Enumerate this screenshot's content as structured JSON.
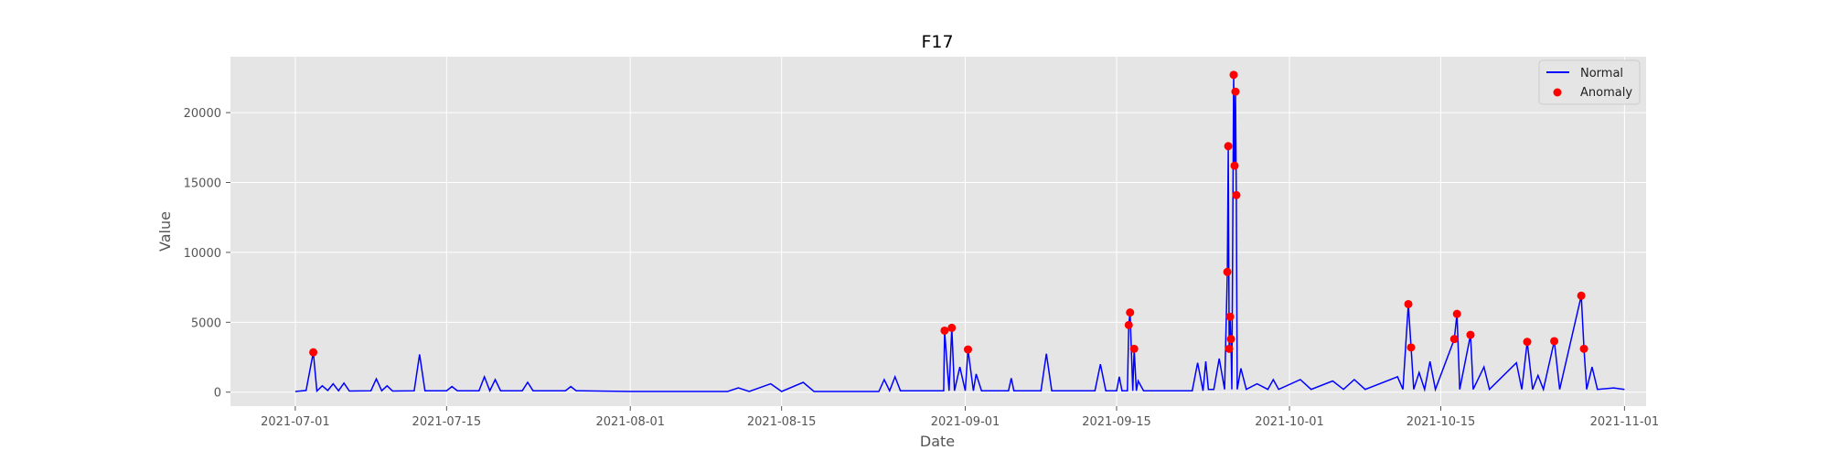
{
  "chart_data": {
    "type": "line",
    "title": "F17",
    "xlabel": "Date",
    "ylabel": "Value",
    "xlim": [
      "2021-06-25",
      "2021-11-03"
    ],
    "ylim": [
      -1000,
      24000
    ],
    "x_ticks": [
      "2021-07-01",
      "2021-07-15",
      "2021-08-01",
      "2021-08-15",
      "2021-09-01",
      "2021-09-15",
      "2021-10-01",
      "2021-10-15",
      "2021-11-01"
    ],
    "y_ticks": [
      0,
      5000,
      10000,
      15000,
      20000
    ],
    "grid": true,
    "legend": {
      "position": "top-right",
      "entries": [
        "Normal",
        "Anomaly"
      ]
    },
    "colors": {
      "normal": "#0000ff",
      "anomaly": "#ff0000",
      "plot_bg": "#e5e5e5",
      "grid": "#ffffff"
    },
    "series": [
      {
        "name": "Normal",
        "points": [
          [
            "2021-07-01",
            50
          ],
          [
            "2021-07-02",
            120
          ],
          [
            "2021-07-02 16:00",
            2850
          ],
          [
            "2021-07-03",
            80
          ],
          [
            "2021-07-03 12:00",
            450
          ],
          [
            "2021-07-04",
            120
          ],
          [
            "2021-07-04 12:00",
            600
          ],
          [
            "2021-07-05",
            100
          ],
          [
            "2021-07-05 12:00",
            650
          ],
          [
            "2021-07-06",
            80
          ],
          [
            "2021-07-08",
            100
          ],
          [
            "2021-07-08 12:00",
            950
          ],
          [
            "2021-07-09",
            100
          ],
          [
            "2021-07-09 12:00",
            450
          ],
          [
            "2021-07-10",
            80
          ],
          [
            "2021-07-12",
            100
          ],
          [
            "2021-07-12 12:00",
            2700
          ],
          [
            "2021-07-13",
            100
          ],
          [
            "2021-07-15",
            100
          ],
          [
            "2021-07-15 12:00",
            400
          ],
          [
            "2021-07-16",
            100
          ],
          [
            "2021-07-18",
            100
          ],
          [
            "2021-07-18 12:00",
            1100
          ],
          [
            "2021-07-19",
            100
          ],
          [
            "2021-07-19 12:00",
            900
          ],
          [
            "2021-07-20",
            100
          ],
          [
            "2021-07-22",
            100
          ],
          [
            "2021-07-22 12:00",
            700
          ],
          [
            "2021-07-23",
            100
          ],
          [
            "2021-07-26",
            100
          ],
          [
            "2021-07-26 12:00",
            400
          ],
          [
            "2021-07-27",
            100
          ],
          [
            "2021-08-01",
            50
          ],
          [
            "2021-08-10",
            50
          ],
          [
            "2021-08-11",
            300
          ],
          [
            "2021-08-12",
            50
          ],
          [
            "2021-08-14",
            600
          ],
          [
            "2021-08-15",
            50
          ],
          [
            "2021-08-17",
            700
          ],
          [
            "2021-08-18",
            50
          ],
          [
            "2021-08-24",
            50
          ],
          [
            "2021-08-24 12:00",
            900
          ],
          [
            "2021-08-25",
            100
          ],
          [
            "2021-08-25 12:00",
            1100
          ],
          [
            "2021-08-26",
            100
          ],
          [
            "2021-08-30",
            100
          ],
          [
            "2021-08-30 02:00",
            4400
          ],
          [
            "2021-08-30 12:00",
            100
          ],
          [
            "2021-08-30 18:00",
            4600
          ],
          [
            "2021-08-31",
            100
          ],
          [
            "2021-08-31 12:00",
            1800
          ],
          [
            "2021-09-01",
            100
          ],
          [
            "2021-09-01 06:00",
            3050
          ],
          [
            "2021-09-01 18:00",
            100
          ],
          [
            "2021-09-02",
            1300
          ],
          [
            "2021-09-02 12:00",
            100
          ],
          [
            "2021-09-05",
            100
          ],
          [
            "2021-09-05 06:00",
            1000
          ],
          [
            "2021-09-05 12:00",
            100
          ],
          [
            "2021-09-08",
            100
          ],
          [
            "2021-09-08 12:00",
            2750
          ],
          [
            "2021-09-09",
            100
          ],
          [
            "2021-09-13",
            100
          ],
          [
            "2021-09-13 12:00",
            2000
          ],
          [
            "2021-09-14",
            100
          ],
          [
            "2021-09-15",
            100
          ],
          [
            "2021-09-15 06:00",
            1100
          ],
          [
            "2021-09-15 12:00",
            100
          ],
          [
            "2021-09-16",
            100
          ],
          [
            "2021-09-16 03:00",
            4800
          ],
          [
            "2021-09-16 06:00",
            5700
          ],
          [
            "2021-09-16 12:00",
            100
          ],
          [
            "2021-09-16 15:00",
            3100
          ],
          [
            "2021-09-16 20:00",
            100
          ],
          [
            "2021-09-17",
            800
          ],
          [
            "2021-09-17 12:00",
            100
          ],
          [
            "2021-09-22",
            100
          ],
          [
            "2021-09-22 12:00",
            2100
          ],
          [
            "2021-09-23",
            100
          ],
          [
            "2021-09-23 06:00",
            2200
          ],
          [
            "2021-09-23 12:00",
            200
          ],
          [
            "2021-09-24",
            200
          ],
          [
            "2021-09-24 12:00",
            2400
          ],
          [
            "2021-09-25",
            200
          ],
          [
            "2021-09-25 06:00",
            8600
          ],
          [
            "2021-09-25 08:00",
            17600
          ],
          [
            "2021-09-25 10:00",
            3100
          ],
          [
            "2021-09-25 12:00",
            5400
          ],
          [
            "2021-09-25 14:00",
            3800
          ],
          [
            "2021-09-25 16:00",
            200
          ],
          [
            "2021-09-25 20:00",
            22700
          ],
          [
            "2021-09-25 22:00",
            16200
          ],
          [
            "2021-09-26",
            21500
          ],
          [
            "2021-09-26 02:00",
            14100
          ],
          [
            "2021-09-26 04:00",
            200
          ],
          [
            "2021-09-26 12:00",
            1700
          ],
          [
            "2021-09-27",
            200
          ],
          [
            "2021-09-28",
            600
          ],
          [
            "2021-09-29",
            200
          ],
          [
            "2021-09-29 12:00",
            900
          ],
          [
            "2021-09-30",
            200
          ],
          [
            "2021-10-02",
            900
          ],
          [
            "2021-10-03",
            200
          ],
          [
            "2021-10-05",
            800
          ],
          [
            "2021-10-06",
            200
          ],
          [
            "2021-10-07",
            900
          ],
          [
            "2021-10-08",
            200
          ],
          [
            "2021-10-11",
            1100
          ],
          [
            "2021-10-11 12:00",
            200
          ],
          [
            "2021-10-12",
            6300
          ],
          [
            "2021-10-12 06:00",
            3200
          ],
          [
            "2021-10-12 12:00",
            200
          ],
          [
            "2021-10-13",
            1400
          ],
          [
            "2021-10-13 12:00",
            200
          ],
          [
            "2021-10-14",
            2200
          ],
          [
            "2021-10-14 12:00",
            200
          ],
          [
            "2021-10-16 06:00",
            3800
          ],
          [
            "2021-10-16 12:00",
            5600
          ],
          [
            "2021-10-16 18:00",
            200
          ],
          [
            "2021-10-17 18:00",
            4100
          ],
          [
            "2021-10-18",
            200
          ],
          [
            "2021-10-19",
            1800
          ],
          [
            "2021-10-19 12:00",
            200
          ],
          [
            "2021-10-22",
            2100
          ],
          [
            "2021-10-22 12:00",
            200
          ],
          [
            "2021-10-23",
            3600
          ],
          [
            "2021-10-23 12:00",
            200
          ],
          [
            "2021-10-24",
            1200
          ],
          [
            "2021-10-24 12:00",
            200
          ],
          [
            "2021-10-25 12:00",
            3650
          ],
          [
            "2021-10-26",
            200
          ],
          [
            "2021-10-28",
            6900
          ],
          [
            "2021-10-28 06:00",
            3100
          ],
          [
            "2021-10-28 12:00",
            200
          ],
          [
            "2021-10-29",
            1800
          ],
          [
            "2021-10-29 12:00",
            200
          ],
          [
            "2021-10-31",
            300
          ],
          [
            "2021-11-01",
            200
          ]
        ]
      },
      {
        "name": "Anomaly",
        "points": [
          [
            "2021-07-02 16:00",
            2850
          ],
          [
            "2021-08-30 02:00",
            4400
          ],
          [
            "2021-08-30 18:00",
            4600
          ],
          [
            "2021-09-01 06:00",
            3050
          ],
          [
            "2021-09-16 03:00",
            4800
          ],
          [
            "2021-09-16 06:00",
            5700
          ],
          [
            "2021-09-16 15:00",
            3100
          ],
          [
            "2021-09-25 06:00",
            8600
          ],
          [
            "2021-09-25 08:00",
            17600
          ],
          [
            "2021-09-25 10:00",
            3100
          ],
          [
            "2021-09-25 12:00",
            5400
          ],
          [
            "2021-09-25 14:00",
            3800
          ],
          [
            "2021-09-25 20:00",
            22700
          ],
          [
            "2021-09-25 22:00",
            16200
          ],
          [
            "2021-09-26",
            21500
          ],
          [
            "2021-09-26 02:00",
            14100
          ],
          [
            "2021-10-12",
            6300
          ],
          [
            "2021-10-12 06:00",
            3200
          ],
          [
            "2021-10-16 06:00",
            3800
          ],
          [
            "2021-10-16 12:00",
            5600
          ],
          [
            "2021-10-17 18:00",
            4100
          ],
          [
            "2021-10-23",
            3600
          ],
          [
            "2021-10-25 12:00",
            3650
          ],
          [
            "2021-10-28",
            6900
          ],
          [
            "2021-10-28 06:00",
            3100
          ]
        ]
      }
    ]
  }
}
